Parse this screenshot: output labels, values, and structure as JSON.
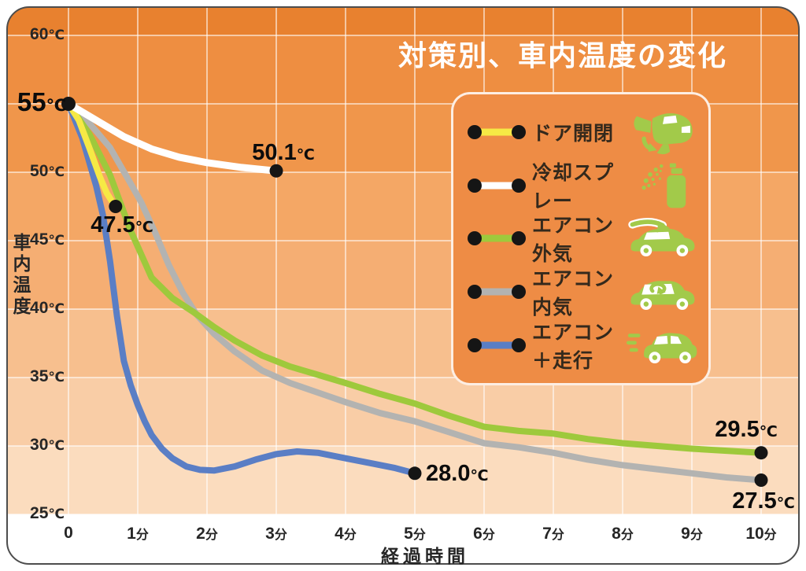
{
  "title": "対策別、車内温度の変化",
  "y_axis": {
    "label": "車内温度",
    "ticks": [
      {
        "value": "60",
        "unit": "℃",
        "t": 60
      },
      {
        "value": "50",
        "unit": "℃",
        "t": 50
      },
      {
        "value": "45",
        "unit": "℃",
        "t": 45
      },
      {
        "value": "40",
        "unit": "℃",
        "t": 40
      },
      {
        "value": "35",
        "unit": "℃",
        "t": 35
      },
      {
        "value": "30",
        "unit": "℃",
        "t": 30
      },
      {
        "value": "25",
        "unit": "℃",
        "t": 25
      }
    ]
  },
  "x_axis": {
    "label": "経過時間",
    "ticks": [
      {
        "value": "0",
        "unit": "",
        "m": 0
      },
      {
        "value": "1",
        "unit": "分",
        "m": 1
      },
      {
        "value": "2",
        "unit": "分",
        "m": 2
      },
      {
        "value": "3",
        "unit": "分",
        "m": 3
      },
      {
        "value": "4",
        "unit": "分",
        "m": 4
      },
      {
        "value": "5",
        "unit": "分",
        "m": 5
      },
      {
        "value": "6",
        "unit": "分",
        "m": 6
      },
      {
        "value": "7",
        "unit": "分",
        "m": 7
      },
      {
        "value": "8",
        "unit": "分",
        "m": 8
      },
      {
        "value": "9",
        "unit": "分",
        "m": 9
      },
      {
        "value": "10",
        "unit": "分",
        "m": 10
      }
    ]
  },
  "annotations": {
    "start": {
      "value": "55",
      "unit": "℃"
    },
    "spray": {
      "value": "50.1",
      "unit": "℃"
    },
    "door": {
      "value": "47.5",
      "unit": "℃"
    },
    "drive": {
      "value": "28.0",
      "unit": "℃"
    },
    "outside": {
      "value": "29.5",
      "unit": "℃"
    },
    "inside": {
      "value": "27.5",
      "unit": "℃"
    }
  },
  "legend": [
    {
      "label": "ドア開閉",
      "color": "#f6e945",
      "icon": "door-open-car-icon"
    },
    {
      "label": "冷却スプレー",
      "color": "#ffffff",
      "icon": "spray-can-icon"
    },
    {
      "label": "エアコン外気",
      "color": "#9ec93c",
      "icon": "car-outside-air-icon"
    },
    {
      "label": "エアコン内気",
      "color": "#b3b3b1",
      "icon": "car-inside-air-icon"
    },
    {
      "label": "エアコン＋走行",
      "color": "#5a7ec5",
      "icon": "car-driving-icon"
    }
  ],
  "colors": {
    "bands": [
      "#e8812f",
      "#ee8e41",
      "#f0964b",
      "#f4a765",
      "#f5ae73",
      "#f7bf8e",
      "#f9cda6",
      "#fbdcbe"
    ],
    "gridline": "#ffffff",
    "card_border": "#4d4d4d",
    "card_fill": "#ffffff",
    "title_text": "#ffffff",
    "tick_text": "#262626",
    "annotation_text": "#0c0c0c",
    "marker_dot": "#151515",
    "legend_bg": "#ee8c45",
    "legend_border": "rgba(255,255,255,0.85)",
    "legend_text": "#34291c",
    "icon_green": "#a2ca4a"
  },
  "chart_data": {
    "type": "line",
    "title": "対策別、車内温度の変化",
    "xlabel": "経過時間",
    "ylabel": "車内温度",
    "x_unit": "分",
    "y_unit": "℃",
    "xlim": [
      0,
      10
    ],
    "ylim": [
      25,
      60
    ],
    "grid": true,
    "legend_position": "upper right",
    "start_point": {
      "x": 0,
      "y": 55,
      "label": "55℃"
    },
    "series": [
      {
        "name": "ドア開閉",
        "color": "#f6e945",
        "end_label": "47.5℃",
        "points": [
          [
            0,
            55
          ],
          [
            0.15,
            53.8
          ],
          [
            0.3,
            51.8
          ],
          [
            0.45,
            49.7
          ],
          [
            0.55,
            48.5
          ],
          [
            0.65,
            47.7
          ],
          [
            0.68,
            47.5
          ]
        ]
      },
      {
        "name": "冷却スプレー",
        "color": "#ffffff",
        "end_label": "50.1℃",
        "points": [
          [
            0,
            55
          ],
          [
            0.4,
            53.8
          ],
          [
            0.8,
            52.6
          ],
          [
            1.2,
            51.7
          ],
          [
            1.6,
            51.1
          ],
          [
            2,
            50.7
          ],
          [
            2.5,
            50.35
          ],
          [
            3,
            50.1
          ]
        ]
      },
      {
        "name": "エアコン外気",
        "color": "#9ec93c",
        "end_label": "29.5℃",
        "points": [
          [
            0,
            55
          ],
          [
            0.3,
            52.8
          ],
          [
            0.6,
            49.8
          ],
          [
            0.9,
            45.7
          ],
          [
            1.2,
            42.3
          ],
          [
            1.5,
            40.8
          ],
          [
            1.8,
            39.8
          ],
          [
            2.1,
            38.7
          ],
          [
            2.4,
            37.7
          ],
          [
            2.8,
            36.6
          ],
          [
            3.2,
            35.8
          ],
          [
            3.6,
            35.2
          ],
          [
            4,
            34.6
          ],
          [
            4.5,
            33.8
          ],
          [
            5,
            33.1
          ],
          [
            5.5,
            32.2
          ],
          [
            6,
            31.4
          ],
          [
            6.5,
            31.1
          ],
          [
            7,
            30.9
          ],
          [
            7.5,
            30.5
          ],
          [
            8,
            30.2
          ],
          [
            8.5,
            30
          ],
          [
            9,
            29.8
          ],
          [
            9.5,
            29.65
          ],
          [
            10,
            29.5
          ]
        ]
      },
      {
        "name": "エアコン内気",
        "color": "#b3b3b1",
        "end_label": "27.5℃",
        "points": [
          [
            0,
            55
          ],
          [
            0.3,
            53.6
          ],
          [
            0.6,
            51.8
          ],
          [
            0.85,
            49.6
          ],
          [
            1.05,
            47.8
          ],
          [
            1.25,
            45.6
          ],
          [
            1.45,
            43.2
          ],
          [
            1.65,
            41.2
          ],
          [
            1.85,
            39.6
          ],
          [
            2.1,
            38.2
          ],
          [
            2.4,
            36.9
          ],
          [
            2.8,
            35.5
          ],
          [
            3.2,
            34.6
          ],
          [
            3.6,
            33.9
          ],
          [
            4,
            33.2
          ],
          [
            4.5,
            32.4
          ],
          [
            5,
            31.8
          ],
          [
            5.5,
            31
          ],
          [
            6,
            30.2
          ],
          [
            6.5,
            29.9
          ],
          [
            7,
            29.5
          ],
          [
            7.5,
            29
          ],
          [
            8,
            28.6
          ],
          [
            8.5,
            28.3
          ],
          [
            9,
            28
          ],
          [
            9.5,
            27.7
          ],
          [
            10,
            27.5
          ]
        ]
      },
      {
        "name": "エアコン＋走行",
        "color": "#5a7ec5",
        "end_label": "28.0℃",
        "points": [
          [
            0,
            55
          ],
          [
            0.2,
            52.5
          ],
          [
            0.4,
            49
          ],
          [
            0.5,
            46.8
          ],
          [
            0.6,
            43.5
          ],
          [
            0.7,
            39.5
          ],
          [
            0.8,
            36.2
          ],
          [
            0.9,
            34.4
          ],
          [
            1,
            33
          ],
          [
            1.1,
            31.8
          ],
          [
            1.2,
            30.8
          ],
          [
            1.35,
            29.8
          ],
          [
            1.5,
            29.1
          ],
          [
            1.7,
            28.5
          ],
          [
            1.9,
            28.25
          ],
          [
            2.1,
            28.2
          ],
          [
            2.4,
            28.5
          ],
          [
            2.7,
            29
          ],
          [
            3,
            29.4
          ],
          [
            3.3,
            29.6
          ],
          [
            3.6,
            29.5
          ],
          [
            4,
            29.1
          ],
          [
            4.4,
            28.7
          ],
          [
            4.7,
            28.4
          ],
          [
            5,
            28
          ]
        ]
      }
    ]
  }
}
